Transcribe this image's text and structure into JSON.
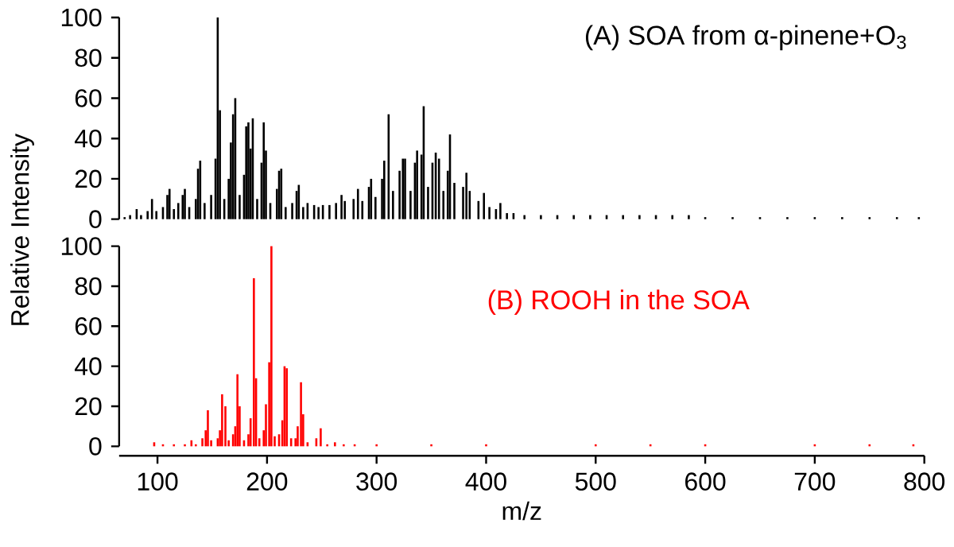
{
  "chart_data": [
    {
      "type": "bar",
      "title": "(A) SOA from α-pinene+O$_{3}$",
      "ylabel": "Relative Intensity",
      "color": "#000000",
      "tick_labels": "y",
      "xlim": [
        65,
        800
      ],
      "ylim": [
        0,
        100
      ],
      "yticks": [
        0,
        20,
        40,
        60,
        80,
        100
      ],
      "x": [
        70,
        75,
        81,
        85,
        91,
        95,
        99,
        105,
        109,
        111,
        115,
        119,
        123,
        125,
        129,
        135,
        137,
        139,
        143,
        149,
        153,
        155,
        157,
        161,
        165,
        167,
        169,
        171,
        175,
        179,
        181,
        183,
        185,
        187,
        191,
        195,
        197,
        199,
        203,
        209,
        211,
        213,
        217,
        223,
        227,
        229,
        233,
        237,
        243,
        247,
        251,
        257,
        263,
        268,
        271,
        279,
        283,
        287,
        293,
        295,
        299,
        305,
        307,
        311,
        315,
        321,
        324,
        326,
        331,
        335,
        337,
        341,
        343,
        347,
        351,
        354,
        357,
        361,
        365,
        367,
        371,
        379,
        382,
        385,
        393,
        398,
        403,
        409,
        413,
        419,
        425,
        435,
        450,
        465,
        480,
        495,
        510,
        525,
        540,
        555,
        570,
        585,
        600,
        625,
        650,
        675,
        700,
        725,
        750,
        775,
        795
      ],
      "values": [
        1,
        2,
        5,
        2,
        4,
        10,
        4,
        6,
        12,
        15,
        5,
        8,
        12,
        15,
        6,
        10,
        25,
        29,
        8,
        12,
        30,
        100,
        54,
        10,
        20,
        38,
        52,
        60,
        12,
        22,
        46,
        48,
        35,
        50,
        10,
        28,
        48,
        34,
        8,
        15,
        24,
        25,
        6,
        8,
        14,
        17,
        6,
        8,
        7,
        6,
        7,
        7,
        8,
        12,
        9,
        10,
        15,
        9,
        16,
        20,
        11,
        20,
        29,
        52,
        14,
        24,
        30,
        30,
        14,
        28,
        34,
        32,
        56,
        16,
        28,
        33,
        30,
        14,
        24,
        42,
        18,
        16,
        23,
        14,
        9,
        13,
        6,
        5,
        8,
        3,
        3,
        2,
        2,
        2,
        2,
        2,
        2,
        2,
        2,
        2,
        2,
        2,
        1,
        1,
        1,
        1,
        1,
        1,
        1,
        1,
        1
      ]
    },
    {
      "type": "bar",
      "title": "(B) ROOH in the SOA",
      "xlabel": "m/z",
      "color": "#ff0000",
      "xlim": [
        65,
        800
      ],
      "ylim": [
        0,
        100
      ],
      "xticks": [
        100,
        200,
        300,
        400,
        500,
        600,
        700,
        800
      ],
      "yticks": [
        0,
        20,
        40,
        60,
        80,
        100
      ],
      "x": [
        97,
        105,
        115,
        125,
        131,
        135,
        141,
        144,
        146,
        149,
        155,
        157,
        159,
        162,
        165,
        169,
        171,
        173,
        175,
        179,
        183,
        185,
        188,
        190,
        193,
        197,
        199,
        202,
        204,
        207,
        211,
        214,
        216,
        218,
        222,
        226,
        228,
        231,
        233,
        237,
        245,
        249,
        255,
        262,
        270,
        280,
        300,
        350,
        400,
        500,
        550,
        600,
        700,
        750,
        790
      ],
      "values": [
        2,
        1,
        1,
        1,
        3,
        1,
        4,
        8,
        18,
        3,
        4,
        8,
        26,
        20,
        3,
        6,
        10,
        36,
        20,
        3,
        6,
        14,
        84,
        34,
        4,
        8,
        21,
        42,
        100,
        5,
        6,
        13,
        40,
        39,
        4,
        4,
        10,
        32,
        16,
        2,
        4,
        9,
        1,
        2,
        1,
        1,
        1,
        1,
        1,
        1,
        1,
        1,
        1,
        1,
        1
      ]
    }
  ]
}
